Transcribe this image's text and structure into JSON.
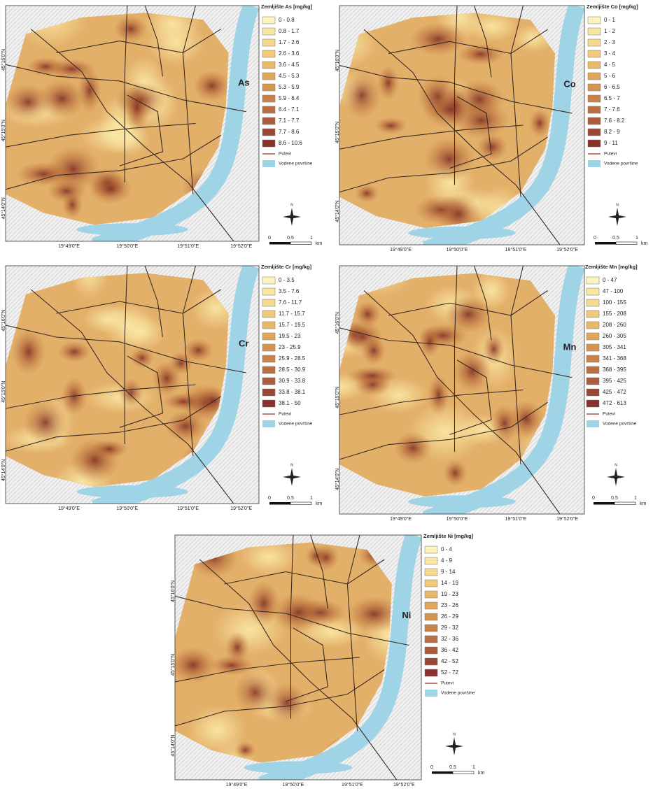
{
  "legend_palette": [
    "#fdf3bd",
    "#f9e6a3",
    "#f5d98e",
    "#f0ca7a",
    "#e9b96a",
    "#e0a65c",
    "#d59552",
    "#c8834a",
    "#ba7043",
    "#aa5c3d",
    "#9a4836",
    "#87302c"
  ],
  "panels": [
    {
      "label": "As",
      "legend_title": "Zemljište As [mg/kg]",
      "classes": [
        "0 - 0.8",
        "0.8 - 1.7",
        "1.7 - 2.6",
        "2.6 - 3.6",
        "3.6 - 4.5",
        "4.5 - 5.3",
        "5.3 - 5.9",
        "5.9 - 6.4",
        "6.4 - 7.1",
        "7.1 - 7.7",
        "7.7 - 8.6",
        "8.6 - 10.6"
      ],
      "roads": "Putevi",
      "water": "Vodene površine",
      "lat_labels": [
        "45°16'0\"N",
        "45°15'0\"N",
        "45°14'0\"N"
      ],
      "lon_labels": [
        "19°49'0\"E",
        "19°50'0\"E",
        "19°51'0\"E",
        "19°52'0\"E"
      ],
      "scale_labels": [
        "0",
        "0.5",
        "1",
        "km"
      ],
      "north": "N"
    },
    {
      "label": "Co",
      "legend_title": "Zemljište Co [mg/kg]",
      "classes": [
        "0 - 1",
        "1 - 2",
        "2 - 3",
        "3 - 4",
        "4 - 5",
        "5 - 6",
        "6 - 6.5",
        "6.5 - 7",
        "7 - 7.6",
        "7.6 - 8.2",
        "8.2 - 9",
        "9 - 11"
      ],
      "roads": "Putevi",
      "water": "Vodene površine",
      "lat_labels": [
        "45°16'0\"N",
        "45°15'0\"N",
        "45°14'0\"N"
      ],
      "lon_labels": [
        "19°49'0\"E",
        "19°50'0\"E",
        "19°51'0\"E",
        "19°52'0\"E"
      ],
      "scale_labels": [
        "0",
        "0.5",
        "1",
        "km"
      ],
      "north": "N"
    },
    {
      "label": "Cr",
      "legend_title": "Zemljište Cr [mg/kg]",
      "classes": [
        "0 - 3.5",
        "3.5 - 7.6",
        "7.6 - 11.7",
        "11.7 - 15.7",
        "15.7 - 19.5",
        "19.5 - 23",
        "23 - 25.9",
        "25.9 - 28.5",
        "28.5 - 30.9",
        "30.9 - 33.8",
        "33.8 - 38.1",
        "38.1 - 50"
      ],
      "roads": "Putevi",
      "water": "Vodene površine",
      "lat_labels": [
        "45°16'0\"N",
        "45°15'0\"N",
        "45°14'0\"N"
      ],
      "lon_labels": [
        "19°49'0\"E",
        "19°50'0\"E",
        "19°51'0\"E",
        "19°52'0\"E"
      ],
      "scale_labels": [
        "0",
        "0.5",
        "1",
        "km"
      ],
      "north": "N"
    },
    {
      "label": "Mn",
      "legend_title": "Zemljište Mn [mg/kg]",
      "classes": [
        "0 - 47",
        "47 - 100",
        "100 - 155",
        "155 - 208",
        "208 - 260",
        "260 - 305",
        "305 - 341",
        "341 - 368",
        "368 - 395",
        "395 - 425",
        "425 - 472",
        "472 - 613"
      ],
      "roads": "Putevi",
      "water": "Vodene površine",
      "lat_labels": [
        "45°16'0\"N",
        "45°15'0\"N",
        "45°14'0\"N"
      ],
      "lon_labels": [
        "19°49'0\"E",
        "19°50'0\"E",
        "19°51'0\"E",
        "19°52'0\"E"
      ],
      "scale_labels": [
        "0",
        "0.5",
        "1",
        "km"
      ],
      "north": "N"
    },
    {
      "label": "Ni",
      "legend_title": "Zemljište Ni [mg/kg]",
      "classes": [
        "0 - 4",
        "4 - 9",
        "9 - 14",
        "14 - 19",
        "19 - 23",
        "23 - 26",
        "26 - 29",
        "29 - 32",
        "32 - 36",
        "36 - 42",
        "42 - 52",
        "52 - 72"
      ],
      "roads": "Putevi",
      "water": "Vodene površine",
      "lat_labels": [
        "45°16'0\"N",
        "45°15'0\"N",
        "45°14'0\"N"
      ],
      "lon_labels": [
        "19°49'0\"E",
        "19°50'0\"E",
        "19°51'0\"E",
        "19°52'0\"E"
      ],
      "scale_labels": [
        "0",
        "0.5",
        "1",
        "km"
      ],
      "north": "N"
    }
  ]
}
